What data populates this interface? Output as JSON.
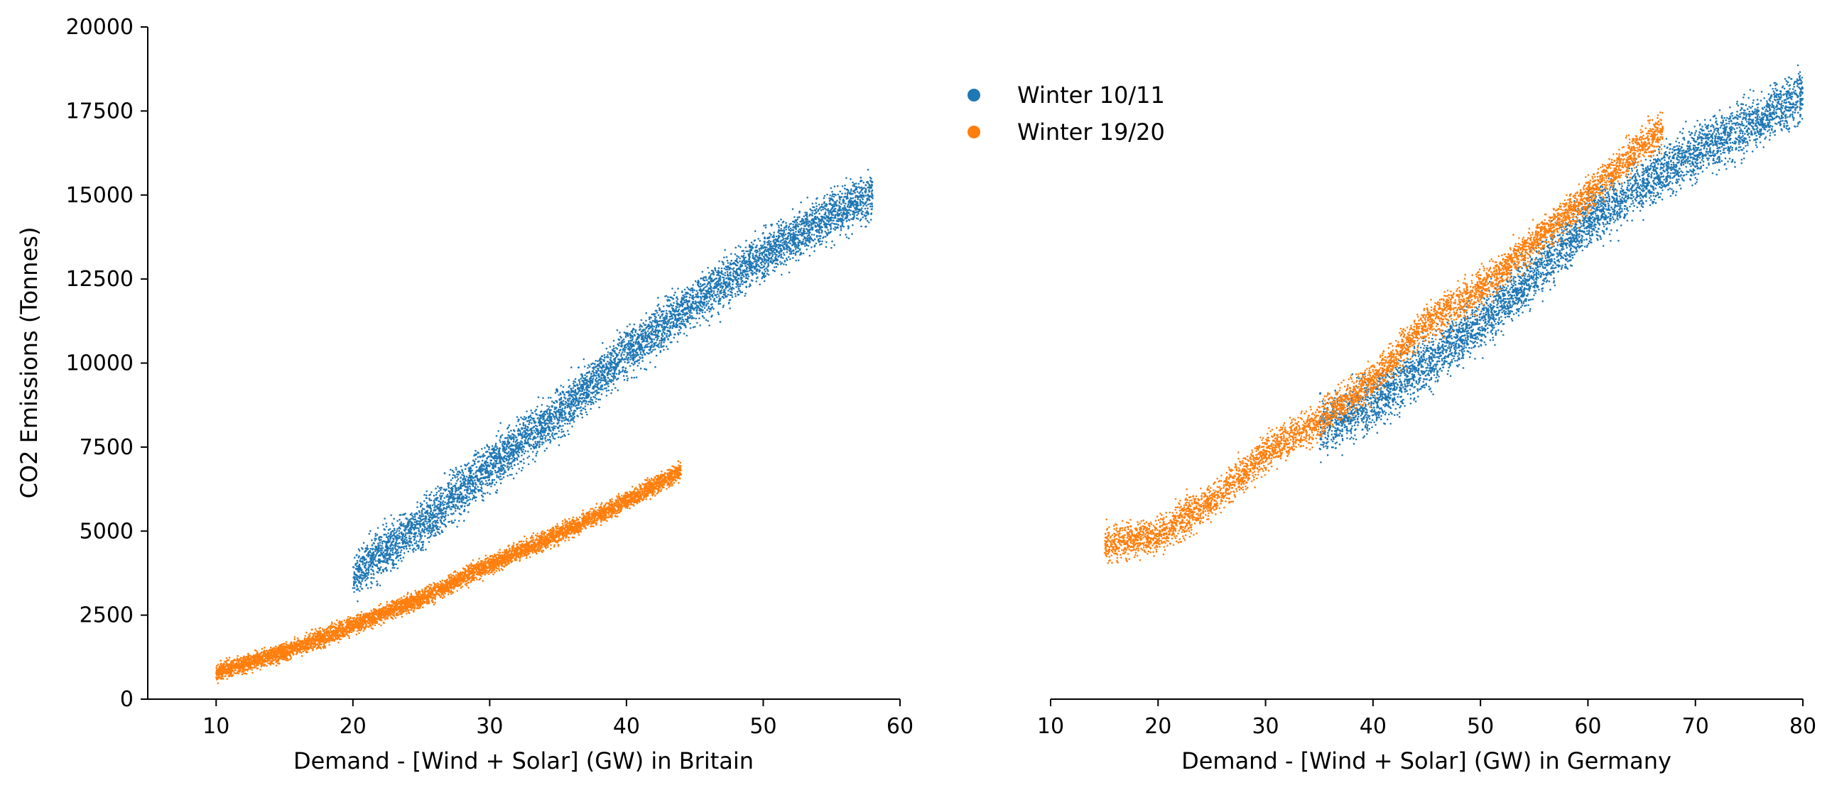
{
  "colors": {
    "winter_10_11": "#1f77b4",
    "winter_19_20": "#ff7f0e"
  },
  "legend": {
    "placement": "upper-center",
    "entries": [
      {
        "label": "Winter 10/11",
        "color": "#1f77b4"
      },
      {
        "label": "Winter 19/20",
        "color": "#ff7f0e"
      }
    ]
  },
  "chart_data": [
    {
      "type": "scatter",
      "panel": "britain",
      "xlabel": "Demand - [Wind + Solar] (GW) in Britain",
      "ylabel": "CO2 Emissions (Tonnes)",
      "xlim": [
        5,
        60
      ],
      "ylim": [
        0,
        20000
      ],
      "xticks": [
        "10",
        "20",
        "30",
        "40",
        "50",
        "60"
      ],
      "yticks": [
        "0",
        "2500",
        "5000",
        "7500",
        "10000",
        "12500",
        "15000",
        "17500",
        "20000"
      ],
      "grid": false,
      "series": [
        {
          "name": "Winter 10/11",
          "color": "#1f77b4",
          "points_approx": 6000,
          "trend": [
            [
              20,
              3700
            ],
            [
              25,
              5200
            ],
            [
              30,
              6900
            ],
            [
              35,
              8500
            ],
            [
              40,
              10300
            ],
            [
              45,
              11800
            ],
            [
              50,
              13200
            ],
            [
              55,
              14400
            ],
            [
              58,
              15000
            ]
          ],
          "spread": 1200
        },
        {
          "name": "Winter 19/20",
          "color": "#ff7f0e",
          "points_approx": 6000,
          "trend": [
            [
              10,
              800
            ],
            [
              15,
              1400
            ],
            [
              20,
              2200
            ],
            [
              25,
              3000
            ],
            [
              30,
              4000
            ],
            [
              35,
              4900
            ],
            [
              40,
              5900
            ],
            [
              44,
              6800
            ]
          ],
          "spread": 450
        }
      ]
    },
    {
      "type": "scatter",
      "panel": "germany",
      "xlabel": "Demand - [Wind + Solar] (GW) in Germany",
      "ylabel": "",
      "xlim": [
        10,
        80
      ],
      "ylim": [
        0,
        20000
      ],
      "xticks": [
        "10",
        "20",
        "30",
        "40",
        "50",
        "60",
        "70",
        "80"
      ],
      "yticks": [],
      "grid": false,
      "series": [
        {
          "name": "Winter 10/11",
          "color": "#1f77b4",
          "points_approx": 5000,
          "trend": [
            [
              35,
              8000
            ],
            [
              40,
              8800
            ],
            [
              45,
              10000
            ],
            [
              50,
              11200
            ],
            [
              55,
              12600
            ],
            [
              60,
              14200
            ],
            [
              65,
              15300
            ],
            [
              70,
              16300
            ],
            [
              75,
              17100
            ],
            [
              80,
              18000
            ]
          ],
          "spread": 1300
        },
        {
          "name": "Winter 19/20",
          "color": "#ff7f0e",
          "points_approx": 5000,
          "trend": [
            [
              15,
              4600
            ],
            [
              20,
              4900
            ],
            [
              25,
              5900
            ],
            [
              30,
              7300
            ],
            [
              35,
              8300
            ],
            [
              40,
              9500
            ],
            [
              45,
              11200
            ],
            [
              50,
              12200
            ],
            [
              55,
              13600
            ],
            [
              60,
              15000
            ],
            [
              65,
              16500
            ],
            [
              67,
              17000
            ]
          ],
          "spread": 900
        }
      ]
    }
  ]
}
